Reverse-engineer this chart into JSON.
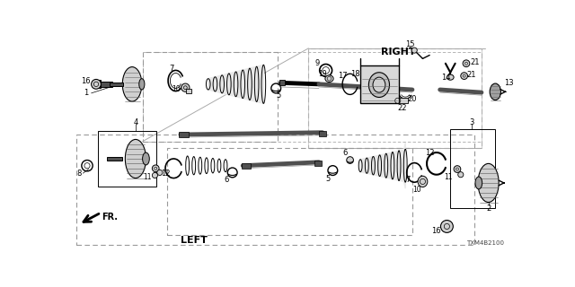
{
  "bg_color": "#ffffff",
  "part_number": "TXM4B2100",
  "right_label": "RIGHT",
  "left_label": "LEFT",
  "fr_label": "FR.",
  "gray_light": "#d0d0d0",
  "gray_mid": "#a0a0a0",
  "gray_dark": "#505050",
  "black": "#000000",
  "line_gray": "#888888"
}
